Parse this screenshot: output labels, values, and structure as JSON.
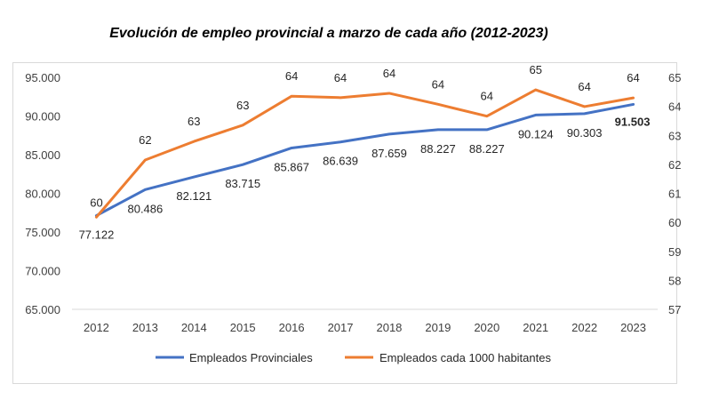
{
  "chart_data": {
    "type": "line",
    "title": "Evolución de empleo provincial a marzo de cada año (2012-2023)",
    "categories": [
      "2012",
      "2013",
      "2014",
      "2015",
      "2016",
      "2017",
      "2018",
      "2019",
      "2020",
      "2021",
      "2022",
      "2023"
    ],
    "y_left": {
      "range": [
        65000,
        95000
      ],
      "ticks": [
        "65.000",
        "70.000",
        "75.000",
        "80.000",
        "85.000",
        "90.000",
        "95.000"
      ],
      "tick_values": [
        65000,
        70000,
        75000,
        80000,
        85000,
        90000,
        95000
      ]
    },
    "y_right": {
      "range": [
        57,
        65
      ],
      "ticks": [
        "57",
        "58",
        "59",
        "60",
        "61",
        "62",
        "63",
        "64",
        "65"
      ],
      "tick_values": [
        57,
        58,
        59,
        60,
        61,
        62,
        63,
        64,
        65
      ]
    },
    "grid": false,
    "legend_position": "bottom",
    "series": [
      {
        "name": "Empleados Provinciales",
        "axis": "left",
        "color": "#4472c4",
        "values": [
          77122,
          80486,
          82121,
          83715,
          85867,
          86639,
          87659,
          88227,
          88227,
          90124,
          90303,
          91503
        ],
        "labels": [
          "77.122",
          "80.486",
          "82.121",
          "83.715",
          "85.867",
          "86.639",
          "87.659",
          "88.227",
          "88.227",
          "90.124",
          "90.303",
          "91.503"
        ],
        "highlight_last_color": "#ff0000"
      },
      {
        "name": "Empleados cada 1000 habitantes",
        "axis": "right",
        "color": "#ed7d31",
        "values": [
          60.18,
          62.15,
          62.79,
          63.35,
          64.35,
          64.3,
          64.45,
          64.07,
          63.66,
          64.57,
          63.99,
          64.29
        ],
        "labels": [
          "60",
          "62",
          "63",
          "63",
          "64",
          "64",
          "64",
          "64",
          "64",
          "65",
          "64",
          "64"
        ]
      }
    ]
  }
}
